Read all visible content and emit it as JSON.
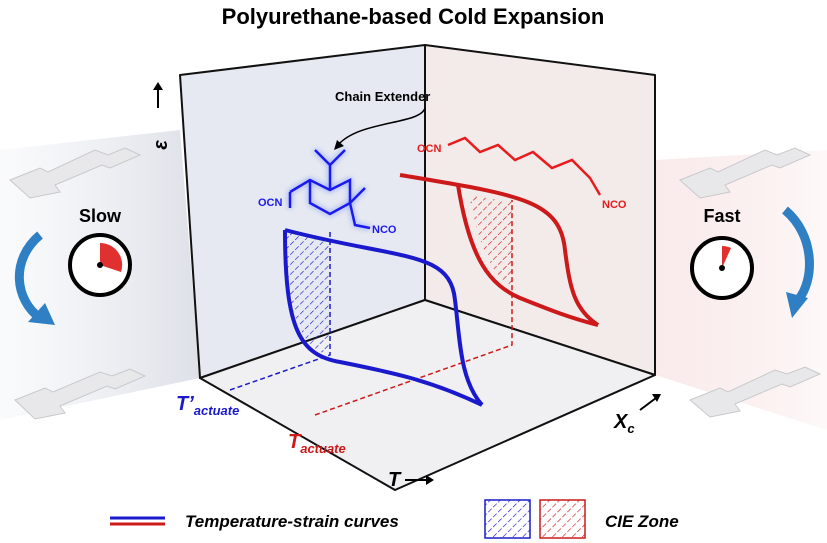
{
  "title": "Polyurethane-based Cold Expansion",
  "annotations": {
    "chain_extender": "Chain Extender"
  },
  "axes": {
    "strain": "ε",
    "t_prime": "T’",
    "t_prime_sub": "actuate",
    "t": "T",
    "t_sub": "actuate",
    "temperature": "T",
    "xc": "X",
    "xc_sub": "c"
  },
  "molecules": {
    "blue": {
      "left": "OCN",
      "right": "NCO"
    },
    "red": {
      "left": "OCN",
      "right": "NCO"
    }
  },
  "rates": {
    "slow": "Slow",
    "fast": "Fast"
  },
  "legend": {
    "curves": "Temperature-strain curves",
    "zone": "CIE Zone"
  }
}
